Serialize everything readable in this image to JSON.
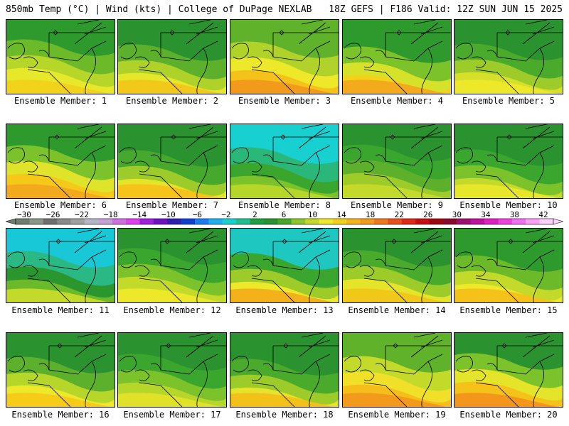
{
  "header": {
    "left": "850mb Temp (°C) | Wind (kts) | College of DuPage NEXLAB",
    "right": "18Z GEFS | F186 Valid: 12Z SUN JUN 15 2025"
  },
  "panels": [
    {
      "label": "Ensemble Member: 1",
      "palette": [
        "#2e9a2e",
        "#6cba2a",
        "#b7d62a",
        "#e7e82a",
        "#f3d21c"
      ]
    },
    {
      "label": "Ensemble Member: 2",
      "palette": [
        "#2a922e",
        "#5cb02c",
        "#aed22a",
        "#e6e62a",
        "#f2c91a"
      ]
    },
    {
      "label": "Ensemble Member: 3",
      "palette": [
        "#5fb22a",
        "#b0d22a",
        "#eee82a",
        "#f5c21a",
        "#f29a1c"
      ]
    },
    {
      "label": "Ensemble Member: 4",
      "palette": [
        "#2e9a2e",
        "#7cc22a",
        "#d6e22a",
        "#f5d21a",
        "#f3aa1c"
      ]
    },
    {
      "label": "Ensemble Member: 5",
      "palette": [
        "#2a922e",
        "#4aaa2c",
        "#9ccb2a",
        "#d6e02a",
        "#eee82a"
      ]
    },
    {
      "label": "Ensemble Member: 6",
      "palette": [
        "#2e9a2e",
        "#7cc22a",
        "#dfe42a",
        "#f5c81a",
        "#f3a91c"
      ]
    },
    {
      "label": "Ensemble Member: 7",
      "palette": [
        "#2a922e",
        "#46a82c",
        "#9ccb2a",
        "#e4e42a",
        "#f4c41a"
      ]
    },
    {
      "label": "Ensemble Member: 8",
      "palette": [
        "#19d0d0",
        "#2ab87a",
        "#3aa62e",
        "#7cc22a",
        "#b7d62a"
      ]
    },
    {
      "label": "Ensemble Member: 9",
      "palette": [
        "#2a922e",
        "#3aa62e",
        "#5cb02c",
        "#9ccb2a",
        "#c4da2a"
      ]
    },
    {
      "label": "Ensemble Member: 10",
      "palette": [
        "#2a922e",
        "#3aa62e",
        "#7cc22a",
        "#c4da2a",
        "#e6e62a"
      ]
    },
    {
      "label": "Ensemble Member: 11",
      "palette": [
        "#19c8d6",
        "#2ab884",
        "#2a962e",
        "#6cba2a",
        "#c4da2a"
      ]
    },
    {
      "label": "Ensemble Member: 12",
      "palette": [
        "#2a922e",
        "#3aa62e",
        "#7cc22a",
        "#c4da2a",
        "#eee82a"
      ]
    },
    {
      "label": "Ensemble Member: 13",
      "palette": [
        "#1ec8c0",
        "#3aa62e",
        "#9ccb2a",
        "#eee82a",
        "#f3b21c"
      ]
    },
    {
      "label": "Ensemble Member: 14",
      "palette": [
        "#2a922e",
        "#4aaa2c",
        "#9ccb2a",
        "#e4e42a",
        "#f0c81a"
      ]
    },
    {
      "label": "Ensemble Member: 15",
      "palette": [
        "#2e9a2e",
        "#6cba2a",
        "#c4da2a",
        "#eee82a",
        "#f5c21a"
      ]
    },
    {
      "label": "Ensemble Member: 16",
      "palette": [
        "#2a922e",
        "#5cb02c",
        "#b7d62a",
        "#eee82a",
        "#f5cc1a"
      ]
    },
    {
      "label": "Ensemble Member: 17",
      "palette": [
        "#2a922e",
        "#3aa62e",
        "#7cc22a",
        "#b7d62a",
        "#e0e22a"
      ]
    },
    {
      "label": "Ensemble Member: 18",
      "palette": [
        "#2a922e",
        "#4aaa2c",
        "#9ccb2a",
        "#e4e42a",
        "#f2c21a"
      ]
    },
    {
      "label": "Ensemble Member: 19",
      "palette": [
        "#5fb22a",
        "#c4da2a",
        "#f0e02a",
        "#f5be1a",
        "#f29a1c"
      ]
    },
    {
      "label": "Ensemble Member: 20",
      "palette": [
        "#2a922e",
        "#7cc22a",
        "#e4e42a",
        "#f5c21a",
        "#f3961c"
      ]
    }
  ],
  "colorbar": {
    "ticks": [
      "-30",
      "-26",
      "-22",
      "-18",
      "-14",
      "-10",
      "-6",
      "-2",
      "2",
      "6",
      "10",
      "14",
      "18",
      "22",
      "26",
      "30",
      "34",
      "38",
      "42"
    ],
    "colors": [
      "#707c70",
      "#8a968a",
      "#6e6e6e",
      "#8a8a8a",
      "#a0a0a0",
      "#b6b6c6",
      "#c8a0d8",
      "#d070e0",
      "#e040f0",
      "#a020e0",
      "#7010c0",
      "#3020b0",
      "#1040d0",
      "#1e7cf0",
      "#20b0f0",
      "#18d2d2",
      "#20c090",
      "#20a040",
      "#2a922e",
      "#48a82c",
      "#8cc62a",
      "#c4da2a",
      "#f0e82a",
      "#f5d21a",
      "#f5b41c",
      "#f39a1c",
      "#f0781c",
      "#e8501c",
      "#e02818",
      "#c81010",
      "#a00810",
      "#880c30",
      "#a01070",
      "#c010a0",
      "#e020c0",
      "#f040e0",
      "#f070f0",
      "#f8a0f8",
      "#ffd0ff"
    ]
  }
}
